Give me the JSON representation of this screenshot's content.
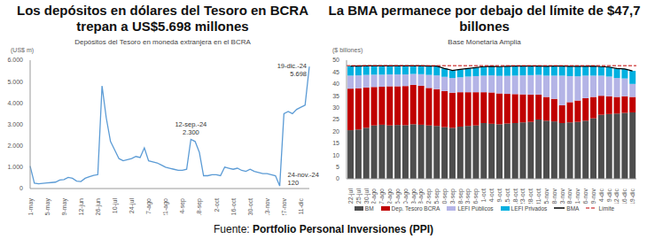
{
  "chart_data": [
    {
      "type": "line",
      "title": "Los depósitos en dólares del Tesoro en BCRA trepan a US$5.698 millones",
      "subtitle": "Depósitos del Tesoro en moneda extranjera en el BCRA",
      "y_label": "(US$ m)",
      "categories": [
        "1-may",
        null,
        null,
        null,
        "15-may",
        null,
        null,
        null,
        "29-may",
        null,
        null,
        null,
        "12-jun",
        null,
        null,
        null,
        "26-jun",
        null,
        null,
        null,
        "10-jul",
        null,
        null,
        null,
        "24-jul",
        null,
        null,
        null,
        "7-ago",
        null,
        null,
        null,
        "21-ago",
        null,
        null,
        null,
        "4-sep",
        null,
        null,
        null,
        "18-sep",
        null,
        null,
        null,
        "2-oct",
        null,
        null,
        null,
        "16-oct",
        null,
        null,
        null,
        "30-oct",
        null,
        null,
        null,
        "13-nov",
        null,
        null,
        null,
        "27-nov",
        null,
        null,
        null,
        "11-dic",
        null,
        null
      ],
      "values": [
        1050,
        250,
        220,
        240,
        260,
        280,
        300,
        400,
        420,
        520,
        480,
        350,
        330,
        480,
        550,
        620,
        650,
        4800,
        3300,
        2200,
        1800,
        1400,
        1300,
        1350,
        1400,
        1500,
        1450,
        1900,
        1300,
        1250,
        1200,
        1100,
        1000,
        950,
        900,
        850,
        850,
        900,
        2300,
        2200,
        1700,
        600,
        600,
        650,
        650,
        600,
        1000,
        950,
        900,
        950,
        850,
        800,
        900,
        800,
        750,
        700,
        700,
        650,
        600,
        120,
        3500,
        3600,
        3500,
        3700,
        3800,
        3900,
        5698
      ],
      "color": "#5b9bd5",
      "ylim": [
        0,
        6000
      ],
      "yticks": [
        0,
        {
          "value": 1000,
          "label": "1.000"
        },
        {
          "value": 2000,
          "label": "2.000"
        },
        {
          "value": 3000,
          "label": "3.000"
        },
        {
          "value": 4000,
          "label": "4.000"
        },
        {
          "value": 5000,
          "label": "5.000"
        },
        {
          "value": 6000,
          "label": "6.000"
        }
      ],
      "grid": false,
      "annotations": [
        {
          "index": 38,
          "label": "12-sep.-24",
          "value": 2300,
          "value_label": "2.300"
        },
        {
          "index": 59,
          "label": "24-nov.-24",
          "value": 120,
          "value_label": "120"
        },
        {
          "index": 66,
          "label": "19-dic.-24",
          "value": 5698,
          "value_label": "5.698"
        }
      ]
    },
    {
      "type": "bar",
      "title": "La BMA permanece por debajo del límite de $47,7 billones",
      "subtitle": "Base Monetaria Amplia",
      "y_label": "($ billones)",
      "stacked": true,
      "grid": false,
      "legend": "bottom",
      "categories": [
        "22-jul",
        "25-jul",
        "30-jul",
        "2-ago",
        "7-ago",
        "12-ago",
        "15-ago",
        "20-ago",
        "23-ago",
        "28-ago",
        "2-sep",
        "5-sep",
        "10-sep",
        "13-sep",
        "18-sep",
        "23-sep",
        "26-sep",
        "1-oct",
        "4-oct",
        "9-oct",
        "15-oct",
        "18-oct",
        "23-oct",
        "28-oct",
        "31-oct",
        "5-nov",
        "8-nov",
        "13-nov",
        "18-nov",
        "21-nov",
        "26-nov",
        "29-nov",
        "4-dic",
        "9-dic",
        "12-dic",
        "16-dic",
        "19-dic"
      ],
      "series": [
        {
          "name": "BM",
          "color": "#4d4d4d",
          "values": [
            20.5,
            20.8,
            21.5,
            22.5,
            22.8,
            22.5,
            22.7,
            22.6,
            23.0,
            22.8,
            22.5,
            22.3,
            21.8,
            21.5,
            22.0,
            22.3,
            22.5,
            23.5,
            23.2,
            23.0,
            23.3,
            23.5,
            23.8,
            24.0,
            25.0,
            24.5,
            24.2,
            23.5,
            23.8,
            24.0,
            24.5,
            25.5,
            27.0,
            27.3,
            27.5,
            27.8,
            28.0
          ]
        },
        {
          "name": "Dep. Tesoro BCRA",
          "color": "#c00000",
          "values": [
            17.5,
            17.4,
            17.0,
            16.2,
            16.0,
            16.5,
            16.3,
            16.5,
            16.6,
            16.4,
            15.8,
            15.5,
            15.2,
            14.8,
            14.5,
            14.2,
            14.0,
            13.0,
            13.2,
            13.0,
            12.5,
            12.2,
            11.8,
            11.5,
            10.5,
            10.0,
            9.5,
            7.5,
            8.5,
            9.0,
            9.5,
            9.0,
            8.0,
            7.5,
            7.0,
            7.0,
            6.5
          ]
        },
        {
          "name": "LEFI Públicos",
          "color": "#b4b4e6",
          "values": [
            5.5,
            5.4,
            5.3,
            5.2,
            5.1,
            5.0,
            5.0,
            4.9,
            4.6,
            4.9,
            5.5,
            5.8,
            6.0,
            6.2,
            6.3,
            6.6,
            6.8,
            7.0,
            7.2,
            7.4,
            7.6,
            7.8,
            8.0,
            8.2,
            8.3,
            9.0,
            9.8,
            12.5,
            11.0,
            10.2,
            9.5,
            9.0,
            8.5,
            8.3,
            8.0,
            7.5,
            5.5
          ]
        },
        {
          "name": "LEFI Privados",
          "color": "#00b0e0",
          "values": [
            4.0,
            3.9,
            3.8,
            3.7,
            3.7,
            3.6,
            3.6,
            3.6,
            3.4,
            3.5,
            3.7,
            3.9,
            3.5,
            3.2,
            3.3,
            3.4,
            3.6,
            3.8,
            3.8,
            3.9,
            4.0,
            4.0,
            3.9,
            3.8,
            3.7,
            3.9,
            4.0,
            4.0,
            4.1,
            4.2,
            3.9,
            4.0,
            3.8,
            4.0,
            4.0,
            4.0,
            5.5
          ]
        },
        {
          "name": "BMA",
          "type": "line",
          "color": "#000000",
          "values": [
            47.5,
            47.5,
            47.6,
            47.6,
            47.6,
            47.6,
            47.6,
            47.6,
            47.6,
            47.6,
            47.5,
            47.5,
            46.5,
            45.7,
            46.1,
            46.5,
            46.9,
            47.3,
            47.4,
            47.3,
            47.4,
            47.5,
            47.5,
            47.5,
            47.5,
            47.4,
            47.5,
            47.5,
            47.4,
            47.4,
            47.4,
            47.5,
            47.3,
            47.1,
            46.5,
            46.3,
            45.5
          ]
        }
      ],
      "limit": {
        "name": "Límite",
        "value": 47.7,
        "color": "#c00000",
        "line_style": "dashed"
      },
      "ylim": [
        0,
        50
      ],
      "yticks": [
        0,
        5,
        10,
        15,
        20,
        25,
        30,
        35,
        40,
        45,
        50
      ]
    }
  ],
  "source": {
    "prefix": "Fuente:",
    "name": "Portfolio Personal Inversiones (PPI)"
  }
}
